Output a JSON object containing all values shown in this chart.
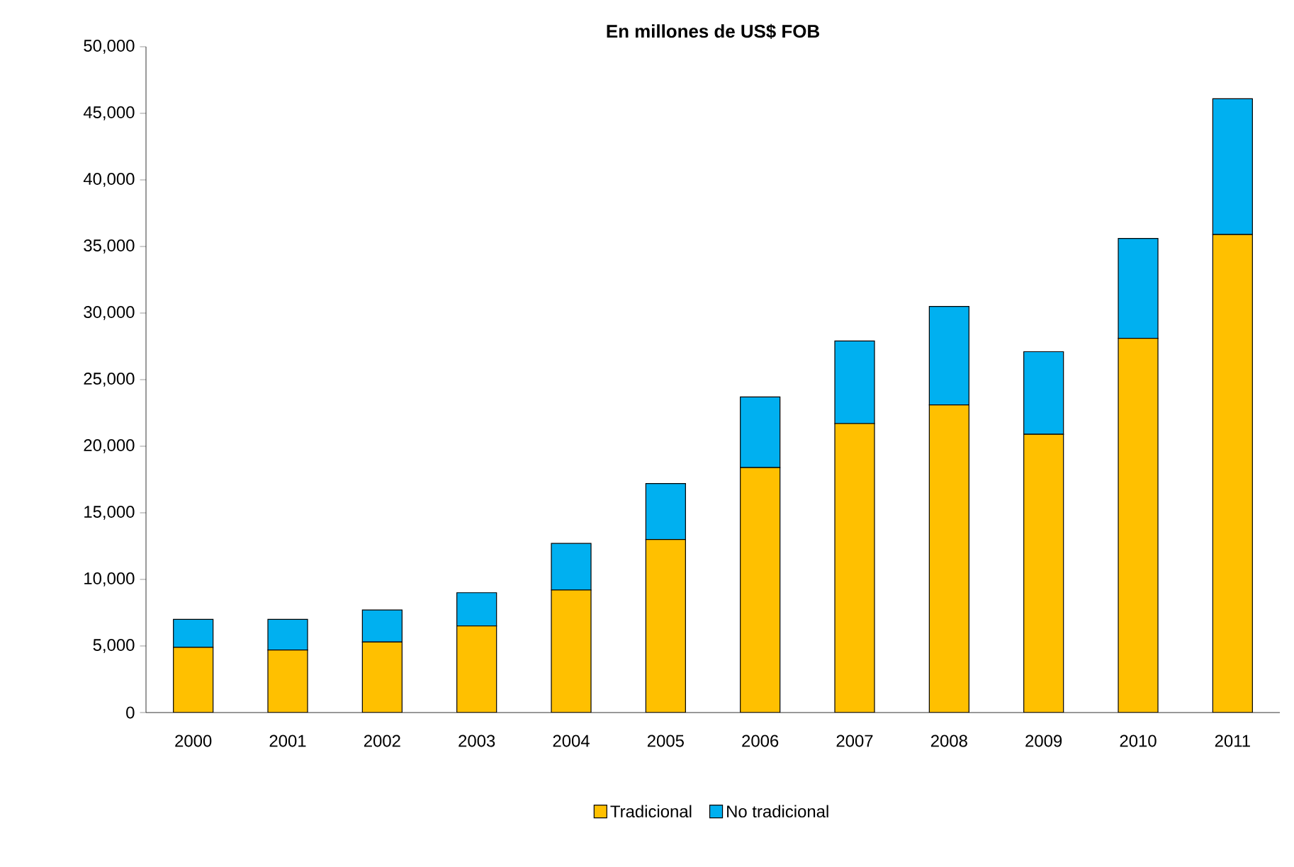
{
  "chart_data": {
    "type": "bar",
    "title": "En millones de US$ FOB",
    "stacked": true,
    "legend": "bottom",
    "categories": [
      "2000",
      "2001",
      "2002",
      "2003",
      "2004",
      "2005",
      "2006",
      "2007",
      "2008",
      "2009",
      "2010",
      "2011"
    ],
    "series": [
      {
        "name": "Tradicional",
        "color": "#ffc000",
        "values": [
          4900,
          4700,
          5300,
          6500,
          9200,
          13000,
          18400,
          21700,
          23100,
          20900,
          28100,
          35900
        ]
      },
      {
        "name": "No tradicional",
        "color": "#00b0f0",
        "values": [
          2100,
          2300,
          2400,
          2500,
          3500,
          4200,
          5300,
          6200,
          7400,
          6200,
          7500,
          10200
        ]
      }
    ],
    "ylim": [
      0,
      50000
    ],
    "yticks": [
      {
        "value": 0,
        "label": "0"
      },
      {
        "value": 5000,
        "label": "5,000"
      },
      {
        "value": 10000,
        "label": "10,000"
      },
      {
        "value": 15000,
        "label": "15,000"
      },
      {
        "value": 20000,
        "label": "20,000"
      },
      {
        "value": 25000,
        "label": "25,000"
      },
      {
        "value": 30000,
        "label": "30,000"
      },
      {
        "value": 35000,
        "label": "35,000"
      },
      {
        "value": 40000,
        "label": "40,000"
      },
      {
        "value": 45000,
        "label": "45,000"
      },
      {
        "value": 50000,
        "label": "50,000"
      }
    ],
    "grid": false
  }
}
